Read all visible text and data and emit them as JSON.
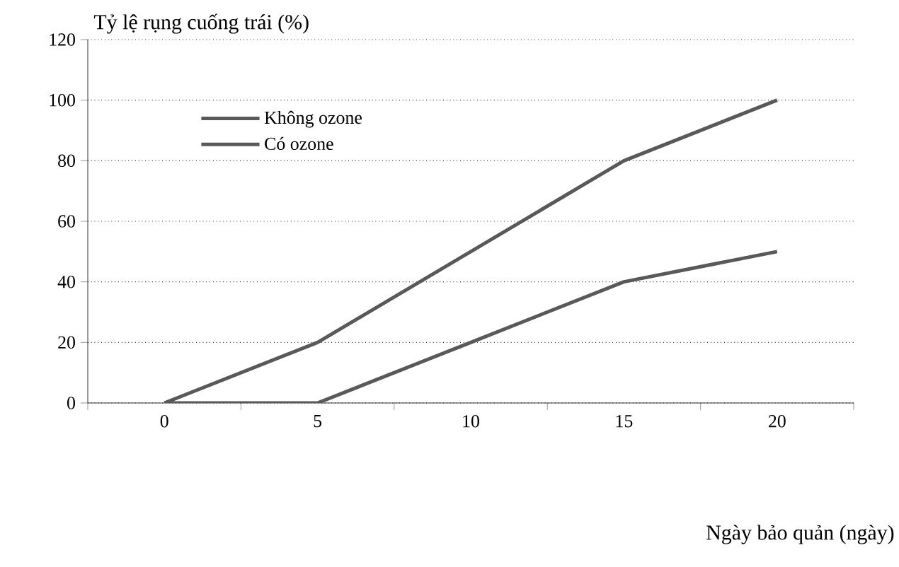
{
  "chart_data": {
    "type": "line",
    "ylabel": "Tỷ lệ rụng cuống trái (%)",
    "xlabel": "Ngày bảo quản (ngày)",
    "categories": [
      "0",
      "5",
      "10",
      "15",
      "20"
    ],
    "series": [
      {
        "name": "Không ozone",
        "color": "#595959",
        "values": [
          0,
          20,
          50,
          80,
          100
        ]
      },
      {
        "name": "Có ozone",
        "color": "#595959",
        "values": [
          0,
          0,
          20,
          40,
          50
        ]
      }
    ],
    "ylim": [
      0,
      120
    ],
    "yticks": [
      0,
      20,
      40,
      60,
      80,
      100,
      120
    ],
    "grid": "y",
    "legend": "top left",
    "marker": "none",
    "line_style": "solid"
  }
}
